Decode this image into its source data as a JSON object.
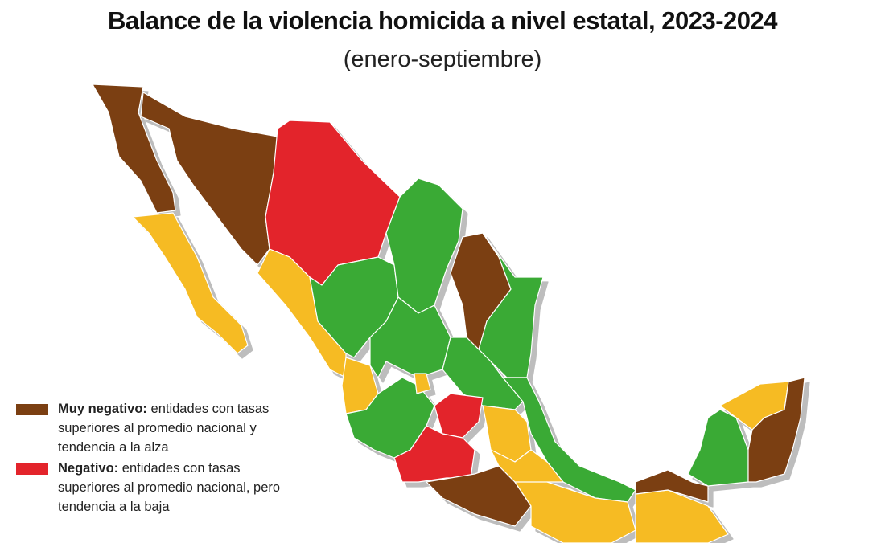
{
  "title": "Balance de la violencia homicida a nivel estatal, 2023-2024",
  "subtitle": "(enero-septiembre)",
  "legend": [
    {
      "label": "Muy negativo:",
      "description": "entidades con tasas superiores al promedio nacional y tendencia a la alza"
    },
    {
      "label": "Negativo:",
      "description": "entidades con tasas superiores al promedio nacional, pero tendencia a la baja"
    }
  ]
}
